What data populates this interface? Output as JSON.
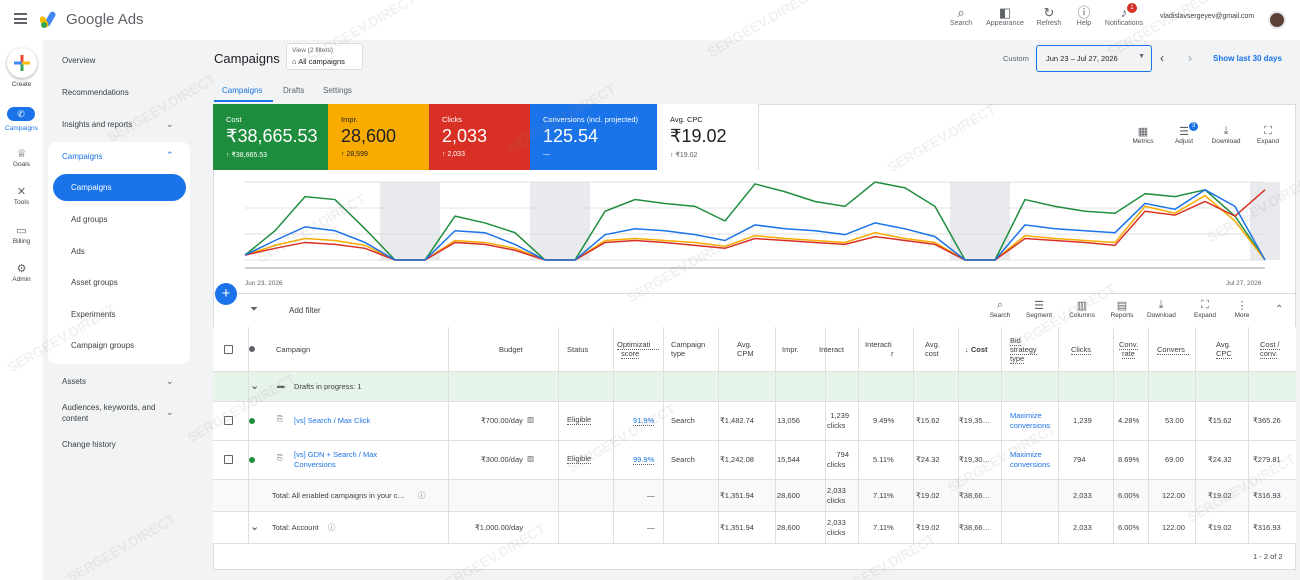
{
  "app": {
    "brand": "Google Ads"
  },
  "topbar": {
    "icons": [
      {
        "label": "Search",
        "icon": "search-icon"
      },
      {
        "label": "Appearance",
        "icon": "appearance-icon"
      },
      {
        "label": "Refresh",
        "icon": "refresh-icon"
      },
      {
        "label": "Help",
        "icon": "help-icon"
      },
      {
        "label": "Notifications",
        "icon": "bell-icon",
        "badge": "1"
      }
    ],
    "email": "vladislavsergeyev@gmail.com"
  },
  "rail": {
    "create": "Create",
    "items": [
      {
        "label": "Campaigns",
        "icon": "campaigns-icon"
      },
      {
        "label": "Goals",
        "icon": "trophy-icon"
      },
      {
        "label": "Tools",
        "icon": "tools-icon"
      },
      {
        "label": "Billing",
        "icon": "billing-icon"
      },
      {
        "label": "Admin",
        "icon": "gear-icon"
      }
    ]
  },
  "nav": {
    "overview": "Overview",
    "recommendations": "Recommendations",
    "insights": "Insights and reports",
    "campaigns": "Campaigns",
    "sub": [
      "Campaigns",
      "Ad groups",
      "Ads",
      "Asset groups",
      "Experiments",
      "Campaign groups"
    ],
    "assets": "Assets",
    "audiences": "Audiences, keywords, and",
    "audiences2": "content",
    "change_history": "Change history"
  },
  "header": {
    "title": "Campaigns",
    "view_label": "View (2 filters)",
    "view_value": "All campaigns",
    "tabs": [
      "Campaigns",
      "Drafts",
      "Settings"
    ],
    "custom": "Custom",
    "date_range": "Jun 23 – Jul 27, 2026",
    "show_last": "Show last 30 days"
  },
  "metrics": [
    {
      "label": "Cost",
      "value": "₹38,665.53",
      "sub": "↑ ₹38,665.53",
      "color": "#1e8e3e"
    },
    {
      "label": "Impr.",
      "value": "28,600",
      "sub": "↑ 28,599",
      "color": "#f9ab00"
    },
    {
      "label": "Clicks",
      "value": "2,033",
      "sub": "↑ 2,033",
      "color": "#d93025"
    },
    {
      "label": "Conversions (incl. projected)",
      "value": "125.54",
      "sub": "—",
      "color": "#1a73e8"
    },
    {
      "label": "Avg. CPC",
      "value": "₹19.02",
      "sub": "↑ ₹19.02",
      "color": "#ffffff"
    }
  ],
  "chart_tools": [
    {
      "label": "Metrics",
      "icon": "metrics-icon"
    },
    {
      "label": "Adjust",
      "icon": "adjust-icon",
      "badge": "3"
    },
    {
      "label": "Download",
      "icon": "download-icon"
    },
    {
      "label": "Expand",
      "icon": "expand-icon"
    }
  ],
  "chart_data": {
    "type": "line",
    "x_start_label": "Jun 23, 2026",
    "x_end_label": "Jul 27, 2026",
    "x": [
      1,
      2,
      3,
      4,
      5,
      6,
      7,
      8,
      9,
      10,
      11,
      12,
      13,
      14,
      15,
      16,
      17,
      18,
      19,
      20,
      21,
      22,
      23,
      24,
      25,
      26,
      27,
      28,
      29,
      30,
      31,
      32,
      33,
      34,
      35
    ],
    "series": [
      {
        "color": "#1e8e3e",
        "values": [
          5,
          30,
          65,
          62,
          32,
          0,
          0,
          45,
          38,
          28,
          0,
          0,
          50,
          62,
          58,
          55,
          40,
          78,
          70,
          60,
          55,
          80,
          74,
          55,
          0,
          0,
          62,
          55,
          50,
          48,
          68,
          65,
          72,
          45,
          0
        ]
      },
      {
        "color": "#f9ab00",
        "values": [
          5,
          15,
          22,
          20,
          15,
          0,
          0,
          20,
          18,
          12,
          0,
          0,
          20,
          22,
          20,
          18,
          14,
          25,
          22,
          20,
          18,
          28,
          22,
          18,
          0,
          0,
          25,
          22,
          20,
          18,
          55,
          48,
          66,
          40,
          0
        ]
      },
      {
        "color": "#d93025",
        "values": [
          5,
          12,
          18,
          16,
          12,
          0,
          0,
          18,
          16,
          10,
          0,
          0,
          18,
          20,
          18,
          15,
          12,
          22,
          20,
          18,
          16,
          24,
          20,
          16,
          0,
          0,
          22,
          20,
          18,
          15,
          50,
          46,
          60,
          45,
          72
        ]
      },
      {
        "color": "#1a73e8",
        "values": [
          5,
          20,
          34,
          30,
          18,
          0,
          0,
          30,
          28,
          16,
          0,
          0,
          26,
          32,
          30,
          26,
          20,
          36,
          32,
          30,
          26,
          38,
          32,
          24,
          0,
          0,
          36,
          32,
          30,
          28,
          58,
          52,
          72,
          55,
          0
        ]
      }
    ]
  },
  "table_bar": {
    "add_filter": "Add filter",
    "tools": [
      "Search",
      "Segment",
      "Columns",
      "Reports",
      "Download",
      "Expand",
      "More"
    ]
  },
  "table": {
    "headers": {
      "campaign": "Campaign",
      "budget": "Budget",
      "status": "Status",
      "opt1": "Optimizati",
      "opt2": "score",
      "ctype1": "Campaign",
      "ctype2": "type",
      "cpm1": "Avg.",
      "cpm2": "CPM",
      "impr": "Impr.",
      "interact": "Interact",
      "irate1": "Interacti",
      "irate2": "r",
      "avgcost1": "Avg.",
      "avgcost2": "cost",
      "cost": "Cost",
      "bid1": "Bid",
      "bid2": "strategy",
      "bid3": "type",
      "clicks": "Clicks",
      "convrate1": "Conv.",
      "convrate2": "rate",
      "conv": "Convers",
      "cpc1": "Avg.",
      "cpc2": "CPC",
      "costconv1": "Cost /",
      "costconv2": "conv."
    },
    "drafts": "Drafts in progress: 1",
    "rows": [
      {
        "name": "[vs] Search / Max Click",
        "name2": "",
        "budget": "₹700.00/day",
        "status": "Eligible",
        "opt": "91.9%",
        "ctype": "Search",
        "cpm": "₹1,482.74",
        "impr": "13,056",
        "interact1": "1,239",
        "interact2": "clicks",
        "irate": "9.49%",
        "avgcost": "₹15.62",
        "cost": "₹19,35…",
        "bid1": "Maximize",
        "bid2": "conversions",
        "clicks": "1,239",
        "convrate": "4.28%",
        "conv": "53.00",
        "cpc": "₹15.62",
        "costconv": "₹365.26"
      },
      {
        "name": "[vs] GDN + Search / Max",
        "name2": "Conversions",
        "budget": "₹300.00/day",
        "status": "Eligible",
        "opt": "99.9%",
        "ctype": "Search",
        "cpm": "₹1,242.08",
        "impr": "15,544",
        "interact1": "794",
        "interact2": "clicks",
        "irate": "5.11%",
        "avgcost": "₹24.32",
        "cost": "₹19,30…",
        "bid1": "Maximize",
        "bid2": "conversions",
        "clicks": "794",
        "convrate": "8.69%",
        "conv": "69.00",
        "cpc": "₹24.32",
        "costconv": "₹279.81"
      }
    ],
    "totals": [
      {
        "label": "Total: All enabled campaigns in your c…",
        "budget": "",
        "opt": "—",
        "cpm": "₹1,351.94",
        "impr": "28,600",
        "interact1": "2,033",
        "interact2": "clicks",
        "irate": "7.11%",
        "avgcost": "₹19.02",
        "cost": "₹38,66…",
        "clicks": "2,033",
        "convrate": "6.00%",
        "conv": "122.00",
        "cpc": "₹19.02",
        "costconv": "₹316.93"
      },
      {
        "label": "Total: Account",
        "budget": "₹1,000.00/day",
        "opt": "—",
        "cpm": "₹1,351.94",
        "impr": "28,600",
        "interact1": "2,033",
        "interact2": "clicks",
        "irate": "7.11%",
        "avgcost": "₹19.02",
        "cost": "₹38,66…",
        "clicks": "2,033",
        "convrate": "6.00%",
        "conv": "122.00",
        "cpc": "₹19.02",
        "costconv": "₹316.93"
      }
    ],
    "pagination": "1 - 2 of 2"
  },
  "watermark": "SERGEEV.DIRECT"
}
